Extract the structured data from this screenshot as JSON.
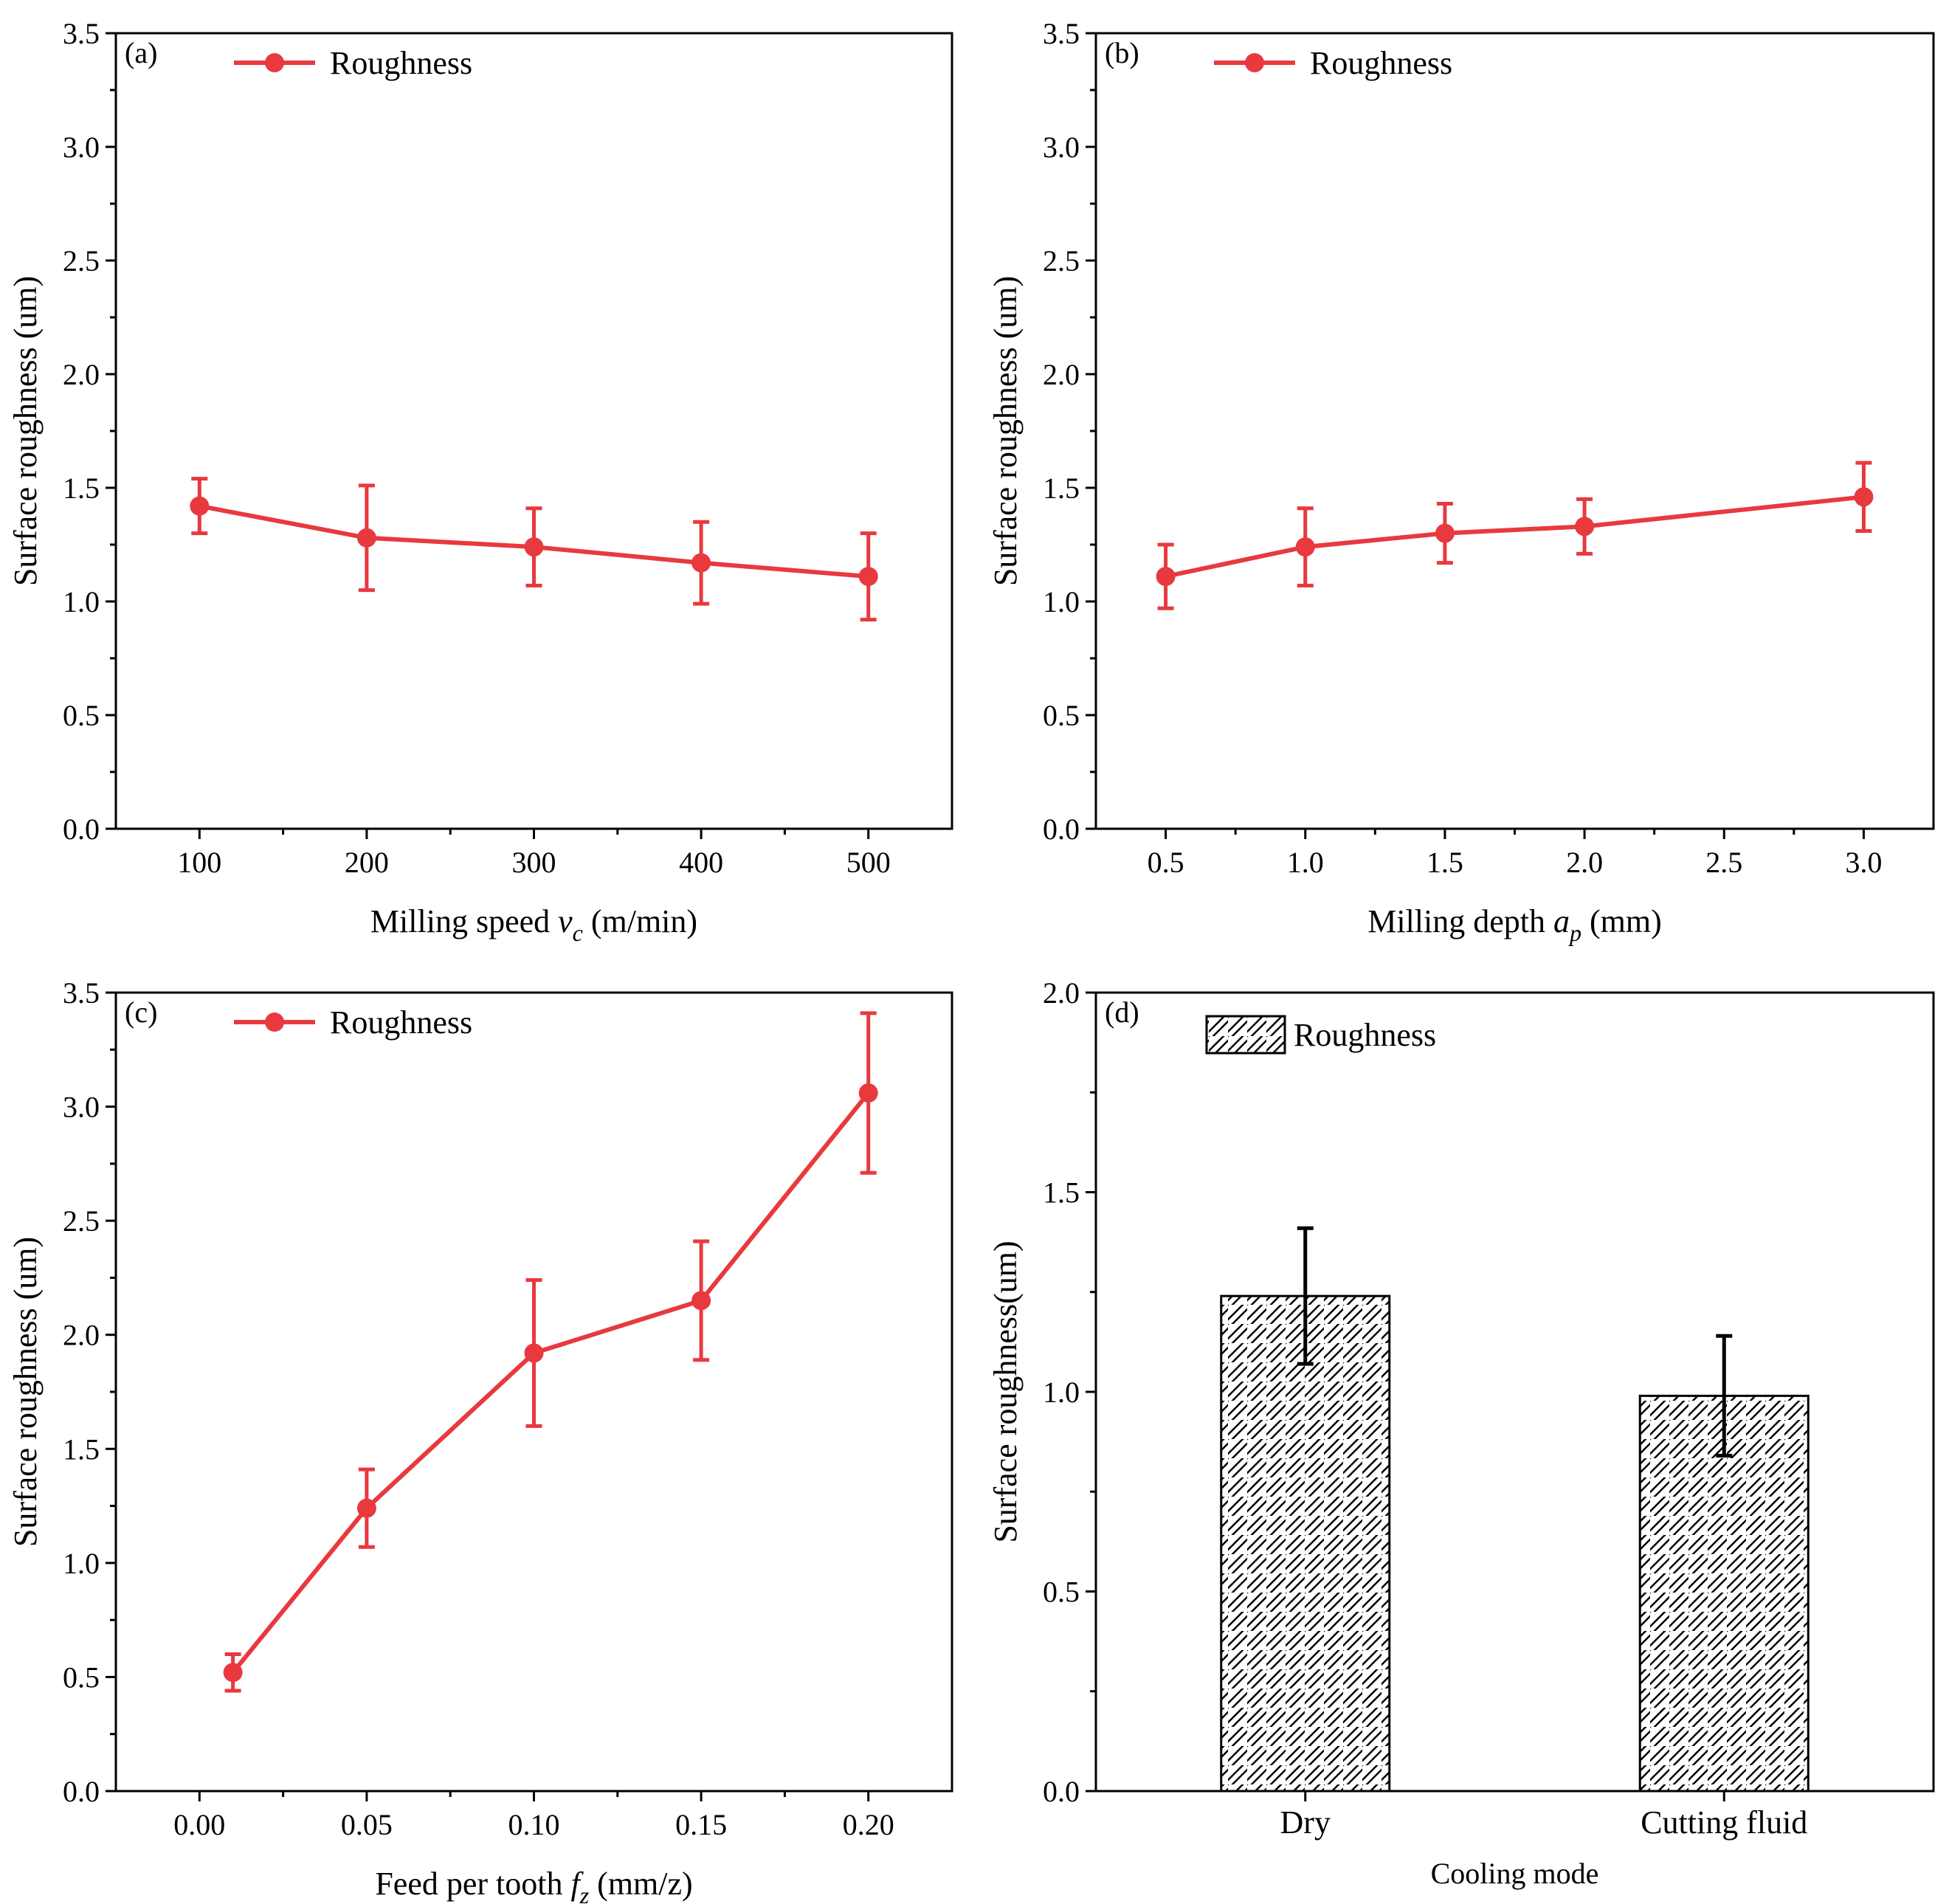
{
  "figure": {
    "description_panels": [
      "a",
      "b",
      "c",
      "d"
    ]
  },
  "colors": {
    "series": "#e8393f",
    "axis": "#000000",
    "bar_fill": "#ffffff",
    "hatch": "#000000"
  },
  "chart_data": [
    {
      "id": "a",
      "type": "line",
      "panel_label": "(a)",
      "legend": "Roughness",
      "x": [
        100,
        200,
        300,
        400,
        500
      ],
      "values": [
        1.42,
        1.28,
        1.24,
        1.17,
        1.11
      ],
      "errors": [
        0.12,
        0.23,
        0.17,
        0.18,
        0.19
      ],
      "xlim": [
        50,
        550
      ],
      "ylim": [
        0,
        3.5
      ],
      "xticks": [
        100,
        200,
        300,
        400,
        500
      ],
      "xtick_labels": [
        "100",
        "200",
        "300",
        "400",
        "500"
      ],
      "yticks": [
        0,
        0.5,
        1.0,
        1.5,
        2.0,
        2.5,
        3.0,
        3.5
      ],
      "ytick_labels": [
        "0.0",
        "0.5",
        "1.0",
        "1.5",
        "2.0",
        "2.5",
        "3.0",
        "3.5"
      ],
      "xlabel_pre": "Milling speed ",
      "xlabel_var": "v",
      "xlabel_sub": "c",
      "xlabel_post": " (m/min)",
      "ylabel": "Surface roughness (um)"
    },
    {
      "id": "b",
      "type": "line",
      "panel_label": "(b)",
      "legend": "Roughness",
      "x": [
        0.5,
        1.0,
        1.5,
        2.0,
        3.0
      ],
      "values": [
        1.11,
        1.24,
        1.3,
        1.33,
        1.46
      ],
      "errors": [
        0.14,
        0.17,
        0.13,
        0.12,
        0.15
      ],
      "xlim": [
        0.25,
        3.25
      ],
      "ylim": [
        0,
        3.5
      ],
      "xticks": [
        0.5,
        1.0,
        1.5,
        2.0,
        2.5,
        3.0
      ],
      "xtick_labels": [
        "0.5",
        "1.0",
        "1.5",
        "2.0",
        "2.5",
        "3.0"
      ],
      "yticks": [
        0,
        0.5,
        1.0,
        1.5,
        2.0,
        2.5,
        3.0,
        3.5
      ],
      "ytick_labels": [
        "0.0",
        "0.5",
        "1.0",
        "1.5",
        "2.0",
        "2.5",
        "3.0",
        "3.5"
      ],
      "xlabel_pre": "Milling depth ",
      "xlabel_var": "a",
      "xlabel_sub": "p",
      "xlabel_post": " (mm)",
      "ylabel": "Surface roughness (um)"
    },
    {
      "id": "c",
      "type": "line",
      "panel_label": "(c)",
      "legend": "Roughness",
      "x": [
        0.01,
        0.05,
        0.1,
        0.15,
        0.2
      ],
      "values": [
        0.52,
        1.24,
        1.92,
        2.15,
        3.06
      ],
      "errors": [
        0.08,
        0.17,
        0.32,
        0.26,
        0.35
      ],
      "xlim": [
        -0.025,
        0.225
      ],
      "ylim": [
        0,
        3.5
      ],
      "xticks": [
        0.0,
        0.05,
        0.1,
        0.15,
        0.2
      ],
      "xtick_labels": [
        "0.00",
        "0.05",
        "0.10",
        "0.15",
        "0.20"
      ],
      "yticks": [
        0,
        0.5,
        1.0,
        1.5,
        2.0,
        2.5,
        3.0,
        3.5
      ],
      "ytick_labels": [
        "0.0",
        "0.5",
        "1.0",
        "1.5",
        "2.0",
        "2.5",
        "3.0",
        "3.5"
      ],
      "xlabel_pre": "Feed per tooth ",
      "xlabel_var": "f",
      "xlabel_sub": "z",
      "xlabel_post": " (mm/z)",
      "ylabel": "Surface roughness (um)"
    },
    {
      "id": "d",
      "type": "bar",
      "panel_label": "(d)",
      "legend": "Roughness",
      "categories": [
        "Dry",
        "Cutting fluid"
      ],
      "values": [
        1.24,
        0.99
      ],
      "errors": [
        0.17,
        0.15
      ],
      "ylim": [
        0,
        2.0
      ],
      "yticks": [
        0,
        0.5,
        1.0,
        1.5,
        2.0
      ],
      "ytick_labels": [
        "0.0",
        "0.5",
        "1.0",
        "1.5",
        "2.0"
      ],
      "xlabel": "Cooling mode",
      "ylabel": "Surface roughness(um)"
    }
  ]
}
